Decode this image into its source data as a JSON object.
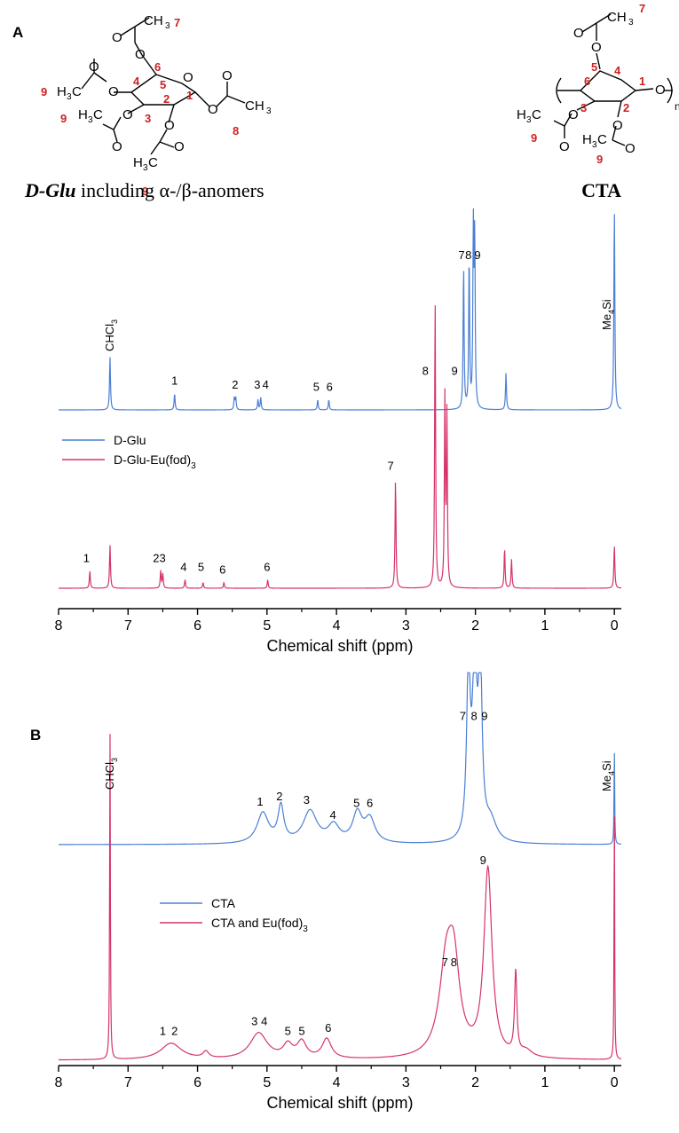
{
  "figure": {
    "panel_a_label": "A",
    "panel_b_label": "B",
    "dglu_caption_prefix": "D-Glu",
    "dglu_caption_rest": " including α-/β-anomers",
    "cta_caption": "CTA",
    "struct_dglu": {
      "ch3": "CH",
      "ch3_sub": "3",
      "h3c": "H",
      "h3c_sub": "3",
      "h3c_c": "C",
      "ring_o": "O",
      "o": "O"
    },
    "struct_cta": {
      "ch3": "CH",
      "ch3_sub": "3",
      "h3c": "H",
      "h3c_sub": "3",
      "h3c_c": "C",
      "o": "O",
      "n": "n"
    },
    "numbers_red": [
      "1",
      "2",
      "3",
      "4",
      "5",
      "6",
      "7",
      "8",
      "9"
    ],
    "red_color": "#cc2222"
  },
  "chart_data": [
    {
      "type": "line",
      "panel": "A",
      "xlabel": "Chemical shift (ppm)",
      "xlim": [
        8,
        -0.1
      ],
      "x_ticks": [
        8,
        7,
        6,
        5,
        4,
        3,
        2,
        1,
        0
      ],
      "x_reversed": true,
      "legend": [
        {
          "name": "D-Glu",
          "color": "#4a7fd4"
        },
        {
          "name": "D-Glu-Eu(fod)",
          "sub": "3",
          "color": "#d6336c"
        }
      ],
      "legend_position": "upper-left",
      "series": [
        {
          "name": "D-Glu",
          "color": "#4a7fd4",
          "peaks": [
            {
              "x": 7.26,
              "h": 0.26
            },
            {
              "x": 6.33,
              "h": 0.08
            },
            {
              "x": 5.47,
              "h": 0.06
            },
            {
              "x": 5.45,
              "h": 0.06
            },
            {
              "x": 5.13,
              "h": 0.05
            },
            {
              "x": 5.09,
              "h": 0.06
            },
            {
              "x": 4.27,
              "h": 0.05
            },
            {
              "x": 4.11,
              "h": 0.05
            },
            {
              "x": 2.17,
              "h": 0.71
            },
            {
              "x": 2.09,
              "h": 0.75
            },
            {
              "x": 2.03,
              "h": 0.86
            },
            {
              "x": 2.01,
              "h": 0.82
            },
            {
              "x": 1.56,
              "h": 0.18
            },
            {
              "x": 0.0,
              "h": 1.0
            }
          ],
          "peak_labels": [
            {
              "x": 6.33,
              "text": "1"
            },
            {
              "x": 5.46,
              "text": "2"
            },
            {
              "x": 5.14,
              "text": "3"
            },
            {
              "x": 5.02,
              "text": "4"
            },
            {
              "x": 4.29,
              "text": "5"
            },
            {
              "x": 4.1,
              "text": "6"
            },
            {
              "x": 2.2,
              "text": "7"
            },
            {
              "x": 2.1,
              "text": "8"
            },
            {
              "x": 1.97,
              "text": "9"
            }
          ]
        },
        {
          "name": "D-Glu-Eu(fod)3",
          "color": "#d6336c",
          "peaks": [
            {
              "x": 7.55,
              "h": 0.06
            },
            {
              "x": 7.26,
              "h": 0.15
            },
            {
              "x": 6.53,
              "h": 0.06
            },
            {
              "x": 6.5,
              "h": 0.05
            },
            {
              "x": 6.18,
              "h": 0.03
            },
            {
              "x": 5.92,
              "h": 0.02
            },
            {
              "x": 5.62,
              "h": 0.02
            },
            {
              "x": 4.99,
              "h": 0.03
            },
            {
              "x": 3.15,
              "h": 0.38
            },
            {
              "x": 2.58,
              "h": 1.0
            },
            {
              "x": 2.44,
              "h": 0.65
            },
            {
              "x": 2.41,
              "h": 0.6
            },
            {
              "x": 1.58,
              "h": 0.14
            },
            {
              "x": 1.48,
              "h": 0.1
            },
            {
              "x": 0.0,
              "h": 0.15
            }
          ],
          "peak_labels": [
            {
              "x": 7.6,
              "text": "1"
            },
            {
              "x": 6.55,
              "text": "23"
            },
            {
              "x": 6.2,
              "text": "4"
            },
            {
              "x": 5.95,
              "text": "5"
            },
            {
              "x": 5.64,
              "text": "6"
            },
            {
              "x": 5.0,
              "text": "6"
            },
            {
              "x": 3.22,
              "text": "7"
            },
            {
              "x": 2.72,
              "text": "8"
            },
            {
              "x": 2.3,
              "text": "9"
            }
          ]
        }
      ],
      "annotations": [
        {
          "text": "CHCl",
          "sub": "3",
          "x": 7.26,
          "rotated": true
        },
        {
          "text": "Me",
          "sub": "4",
          "tail": "Si",
          "x": 0.0,
          "rotated": true
        }
      ]
    },
    {
      "type": "line",
      "panel": "B",
      "xlabel": "Chemical shift (ppm)",
      "xlim": [
        8,
        -0.1
      ],
      "x_ticks": [
        8,
        7,
        6,
        5,
        4,
        3,
        2,
        1,
        0
      ],
      "x_reversed": true,
      "legend": [
        {
          "name": "CTA",
          "color": "#4a7fd4"
        },
        {
          "name": "CTA and Eu(fod)",
          "sub": "3",
          "color": "#d6336c"
        }
      ],
      "legend_position": "middle-left",
      "series": [
        {
          "name": "CTA",
          "color": "#4a7fd4",
          "peaks": [
            {
              "x": 5.06,
              "h": 0.18,
              "w": 0.1
            },
            {
              "x": 4.8,
              "h": 0.21,
              "w": 0.05
            },
            {
              "x": 4.38,
              "h": 0.19,
              "w": 0.12
            },
            {
              "x": 4.04,
              "h": 0.1,
              "w": 0.1
            },
            {
              "x": 3.7,
              "h": 0.17,
              "w": 0.08
            },
            {
              "x": 3.52,
              "h": 0.14,
              "w": 0.09
            },
            {
              "x": 2.1,
              "h": 1.0,
              "w": 0.03
            },
            {
              "x": 2.01,
              "h": 1.0,
              "w": 0.04
            },
            {
              "x": 1.93,
              "h": 1.0,
              "w": 0.03
            },
            {
              "x": 1.78,
              "h": 0.12,
              "w": 0.1
            },
            {
              "x": 0.0,
              "h": 0.6,
              "w": 0.005
            }
          ],
          "peak_labels": [
            {
              "x": 5.1,
              "text": "1"
            },
            {
              "x": 4.82,
              "text": "2"
            },
            {
              "x": 4.43,
              "text": "3"
            },
            {
              "x": 4.05,
              "text": "4"
            },
            {
              "x": 3.71,
              "text": "5"
            },
            {
              "x": 3.52,
              "text": "6"
            },
            {
              "x": 2.18,
              "text": "7"
            },
            {
              "x": 2.02,
              "text": "8"
            },
            {
              "x": 1.87,
              "text": "9"
            }
          ]
        },
        {
          "name": "CTA and Eu(fod)3",
          "color": "#d6336c",
          "peaks": [
            {
              "x": 7.26,
              "h": 1.0,
              "w": 0.006
            },
            {
              "x": 6.38,
              "h": 0.05,
              "w": 0.18
            },
            {
              "x": 5.88,
              "h": 0.02,
              "w": 0.05
            },
            {
              "x": 5.12,
              "h": 0.08,
              "w": 0.15
            },
            {
              "x": 4.7,
              "h": 0.04,
              "w": 0.08
            },
            {
              "x": 4.5,
              "h": 0.05,
              "w": 0.08
            },
            {
              "x": 4.14,
              "h": 0.06,
              "w": 0.08
            },
            {
              "x": 2.42,
              "h": 0.26,
              "w": 0.12
            },
            {
              "x": 2.31,
              "h": 0.24,
              "w": 0.1
            },
            {
              "x": 1.82,
              "h": 0.57,
              "w": 0.07
            },
            {
              "x": 1.42,
              "h": 0.25,
              "w": 0.02
            },
            {
              "x": 1.27,
              "h": 0.02,
              "w": 0.1
            },
            {
              "x": 0.0,
              "h": 0.82,
              "w": 0.005
            }
          ],
          "peak_labels": [
            {
              "x": 6.5,
              "text": "1"
            },
            {
              "x": 6.33,
              "text": "2"
            },
            {
              "x": 5.18,
              "text": "3"
            },
            {
              "x": 5.04,
              "text": "4"
            },
            {
              "x": 4.7,
              "text": "5"
            },
            {
              "x": 4.5,
              "text": "5"
            },
            {
              "x": 4.12,
              "text": "6"
            },
            {
              "x": 2.44,
              "text": "7"
            },
            {
              "x": 2.31,
              "text": "8"
            },
            {
              "x": 1.89,
              "text": "9"
            }
          ]
        }
      ],
      "annotations": [
        {
          "text": "CHCl",
          "sub": "3",
          "x": 7.26,
          "rotated": true
        },
        {
          "text": "Me",
          "sub": "4",
          "tail": "Si",
          "x": 0.0,
          "rotated": true
        }
      ]
    }
  ]
}
